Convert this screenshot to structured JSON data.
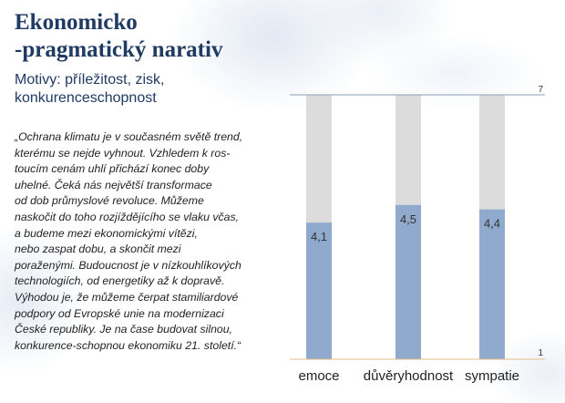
{
  "slide": {
    "title_lines": [
      "Ekonomicko",
      "-pragmatický narativ"
    ],
    "subtitle_lines": [
      "Motivy: příležitost, zisk,",
      "konkurenceschopnost"
    ],
    "quote_lines": [
      "„Ochrana klimatu je v současném světě trend,",
      "kterému se nejde vyhnout. Vzhledem k ros-",
      "toucím cenám uhlí přichází konec doby",
      "uhelné. Čeká nás největší transformace",
      "od dob průmyslové revoluce. Můžeme",
      "naskočit do toho rozjíždějícího se vlaku včas,",
      "a budeme mezi ekonomickými vítězi,",
      "nebo zaspat dobu, a skončit mezi",
      "poraženými. Budoucnost je v nízkouhlíkových",
      "technologiích, od energetiky až k dopravě.",
      "Výhodou je, že můžeme čerpat stamiliardové",
      "podpory od Evropské unie na modernizaci",
      "České republiky. Je na čase budovat silnou,",
      "konkurence-schopnou ekonomiku 21. století.“"
    ]
  },
  "chart_data": {
    "type": "bar",
    "categories": [
      "emoce",
      "důvěryhodnost",
      "sympatie"
    ],
    "values": [
      4.1,
      4.5,
      4.4
    ],
    "value_labels": [
      "4,1",
      "4,5",
      "4,4"
    ],
    "ylim": [
      1,
      7
    ],
    "y_tick_labels": [
      "1",
      "7"
    ],
    "background_bar_value": 7,
    "grid": false,
    "colors": {
      "bar": "#8faacd",
      "background_bar": "#dcdcdc",
      "top_line": "#8aa0b8",
      "baseline": "#e6b98a",
      "label": "#333333",
      "category": "#222222"
    }
  }
}
